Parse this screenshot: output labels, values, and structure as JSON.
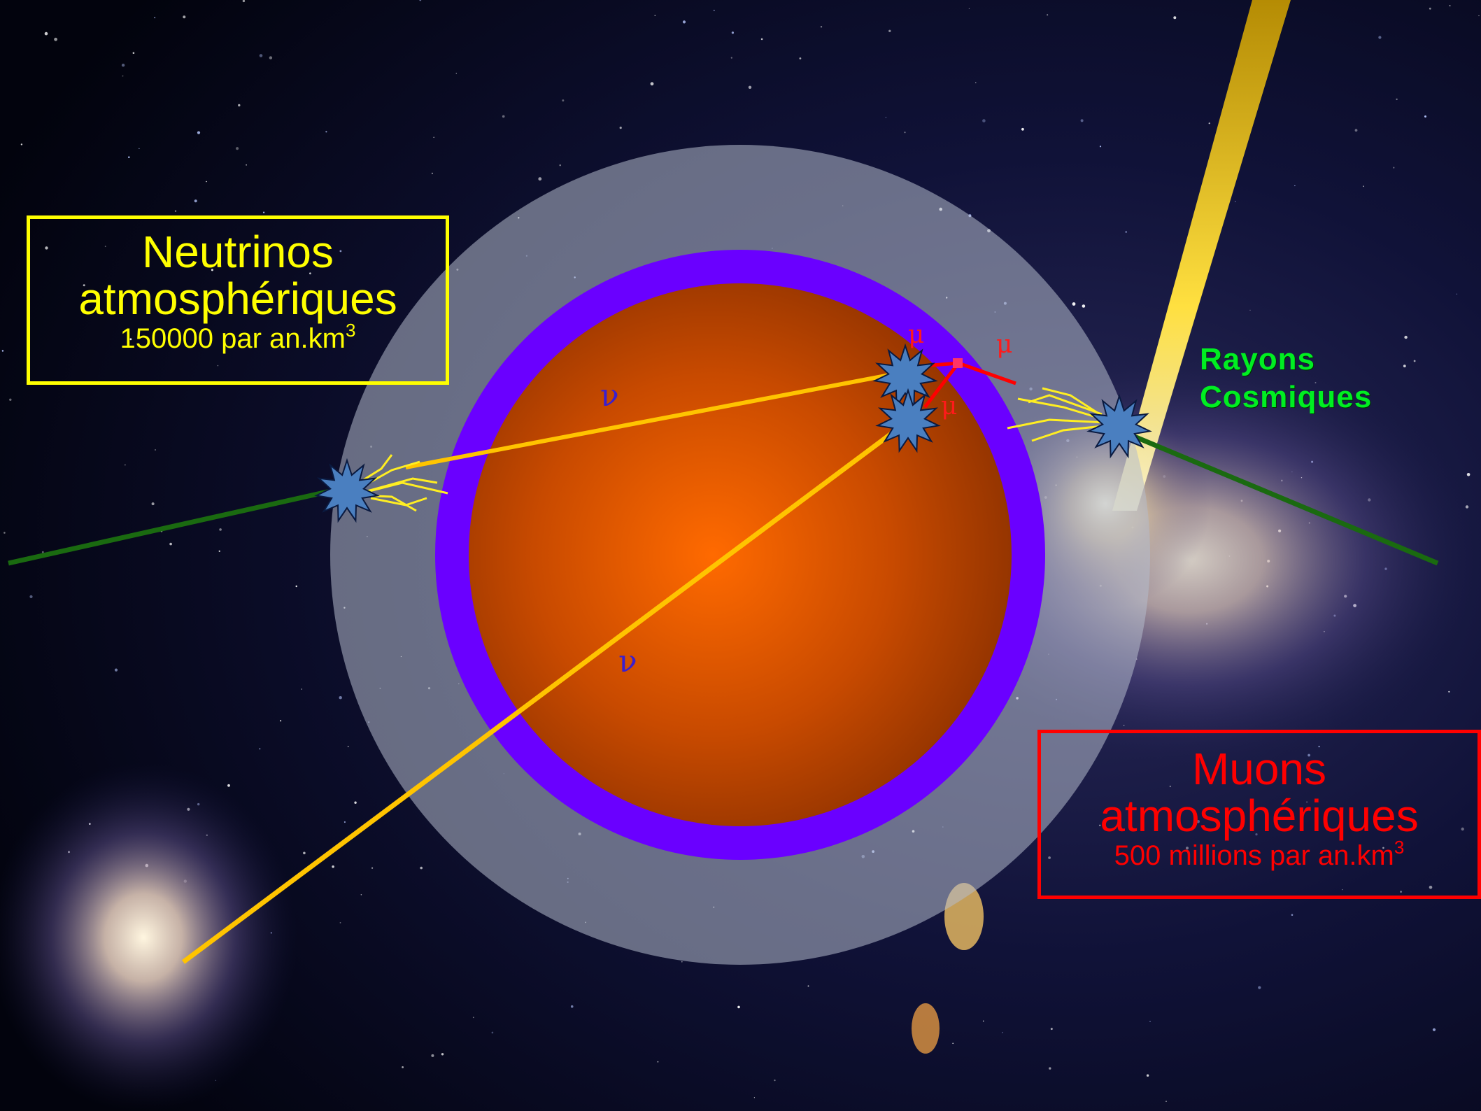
{
  "neutrinos_box": {
    "title_line1": "Neutrinos",
    "title_line2": "atmosphériques",
    "rate_text": "150000 par an.km",
    "rate_exp": "3",
    "color": "#ffff00"
  },
  "muons_box": {
    "title_line1": "Muons",
    "title_line2": "atmosphériques",
    "rate_text": "500 millions par an.km",
    "rate_exp": "3",
    "color": "#ff0000"
  },
  "cosmic_rays_label": {
    "line1": "Rayons",
    "line2": "Cosmiques",
    "color": "#00ee22"
  },
  "symbols": {
    "neutrino": "ν",
    "muon": "μ"
  },
  "colors": {
    "earth_core": "#ff6a00",
    "earth_shell": "#6a00ff",
    "atmosphere": "#9aa0b4",
    "cosmic_ray_track": "#1a6a10",
    "neutrino_track": "#ffc400",
    "muon_track": "#ff0000",
    "interaction_star": "#4a7fc0",
    "background": "#05061a"
  }
}
